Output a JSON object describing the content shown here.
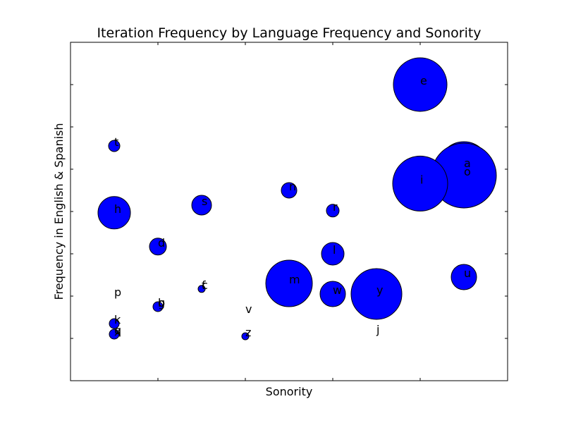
{
  "chart_data": {
    "type": "scatter",
    "title": "Iteration Frequency by Language Frequency and Sonority",
    "xlabel": "Sonority",
    "ylabel": "Frequency in English & Spanish",
    "xlim": [
      0,
      10
    ],
    "ylim": [
      0,
      8
    ],
    "xticks": [
      2,
      4,
      6,
      8
    ],
    "yticks": [
      1,
      2,
      3,
      4,
      5,
      6,
      7
    ],
    "tick_labels_shown": false,
    "grid": false,
    "marker_color": "#0000ff",
    "points": [
      {
        "label": "e",
        "x": 8.0,
        "y": 7.0,
        "size": 38
      },
      {
        "label": "a",
        "x": 9.0,
        "y": 5.05,
        "size": 36
      },
      {
        "label": "o",
        "x": 9.0,
        "y": 4.85,
        "size": 46
      },
      {
        "label": "i",
        "x": 8.0,
        "y": 4.66,
        "size": 39
      },
      {
        "label": "y",
        "x": 7.0,
        "y": 2.05,
        "size": 36
      },
      {
        "label": "m",
        "x": 5.0,
        "y": 2.3,
        "size": 33
      },
      {
        "label": "u",
        "x": 9.0,
        "y": 2.45,
        "size": 18
      },
      {
        "label": "w",
        "x": 6.0,
        "y": 2.05,
        "size": 18
      },
      {
        "label": "l",
        "x": 6.0,
        "y": 3.0,
        "size": 16
      },
      {
        "label": "r",
        "x": 6.0,
        "y": 4.02,
        "size": 9
      },
      {
        "label": "n",
        "x": 5.0,
        "y": 4.5,
        "size": 11
      },
      {
        "label": "s",
        "x": 3.0,
        "y": 4.15,
        "size": 14
      },
      {
        "label": "h",
        "x": 1.0,
        "y": 3.97,
        "size": 23
      },
      {
        "label": "t",
        "x": 1.0,
        "y": 5.55,
        "size": 8
      },
      {
        "label": "d",
        "x": 2.0,
        "y": 3.17,
        "size": 12
      },
      {
        "label": "c",
        "x": 3.0,
        "y": 2.17,
        "size": 5
      },
      {
        "label": "f",
        "x": 3.0,
        "y": 2.17,
        "size": 0
      },
      {
        "label": "g",
        "x": 2.0,
        "y": 1.75,
        "size": 0
      },
      {
        "label": "b",
        "x": 2.0,
        "y": 1.75,
        "size": 7
      },
      {
        "label": "p",
        "x": 1.0,
        "y": 2.0,
        "size": 0
      },
      {
        "label": "k",
        "x": 1.0,
        "y": 1.35,
        "size": 7
      },
      {
        "label": "q",
        "x": 1.0,
        "y": 1.1,
        "size": 7
      },
      {
        "label": "x",
        "x": 1.0,
        "y": 1.07,
        "size": 0
      },
      {
        "label": "v",
        "x": 4.0,
        "y": 1.6,
        "size": 0
      },
      {
        "label": "z",
        "x": 4.0,
        "y": 1.05,
        "size": 5
      },
      {
        "label": "j",
        "x": 7.0,
        "y": 1.12,
        "size": 0
      }
    ]
  }
}
